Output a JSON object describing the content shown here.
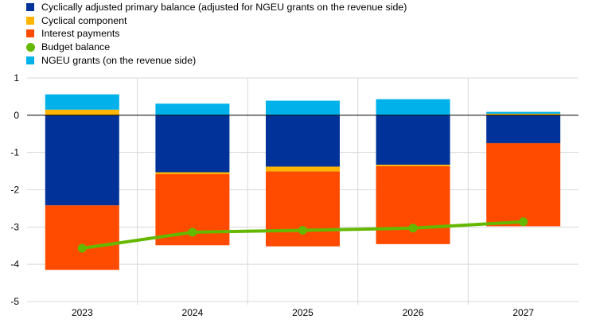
{
  "chart_data": {
    "type": "bar",
    "categories": [
      "2023",
      "2024",
      "2025",
      "2026",
      "2027"
    ],
    "ylim": [
      -5,
      1
    ],
    "yticks": [
      1,
      0,
      -1,
      -2,
      -3,
      -4,
      -5
    ],
    "grid": true,
    "legend_placement": "top-left",
    "series": [
      {
        "name": "Cyclically adjusted primary balance (adjusted for NGEU grants on the revenue side)",
        "kind": "bar",
        "color": "#003299",
        "values": [
          -2.42,
          -1.53,
          -1.38,
          -1.33,
          -0.75
        ]
      },
      {
        "name": "Cyclical component",
        "kind": "bar",
        "color": "#FFB400",
        "values": [
          0.15,
          -0.05,
          -0.13,
          -0.04,
          0.04
        ]
      },
      {
        "name": "Interest payments",
        "kind": "bar",
        "color": "#FF4B00",
        "values": [
          -1.73,
          -1.91,
          -2.01,
          -2.09,
          -2.23
        ]
      },
      {
        "name": "Budget balance",
        "kind": "line",
        "color": "#65B800",
        "values": [
          -3.57,
          -3.14,
          -3.09,
          -3.03,
          -2.86
        ]
      },
      {
        "name": "NGEU grants (on the revenue side)",
        "kind": "bar",
        "color": "#00B1EA",
        "values": [
          0.41,
          0.31,
          0.39,
          0.43,
          0.05
        ]
      }
    ]
  }
}
